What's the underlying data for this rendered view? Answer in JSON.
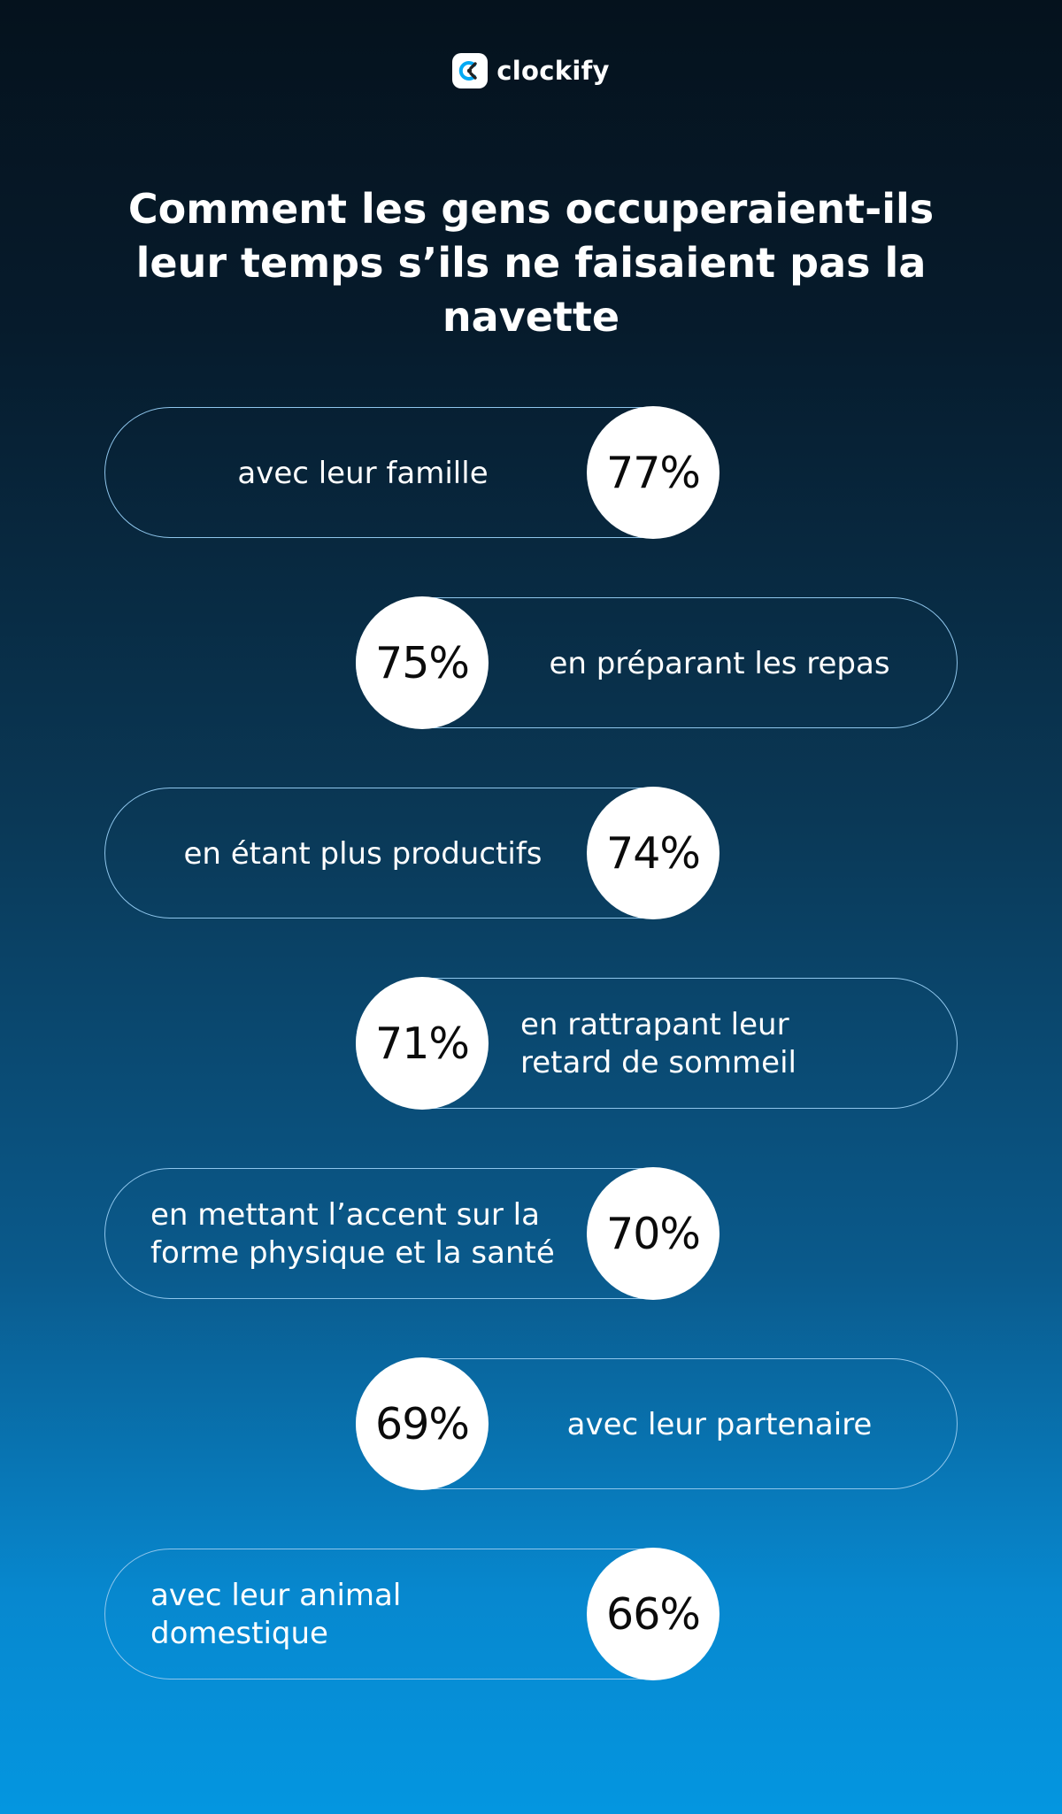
{
  "brand": {
    "name": "clockify",
    "icon": "clockify-logo-icon"
  },
  "chart_data": {
    "type": "bar",
    "title": "Comment les gens occuperaient-ils leur temps s’ils ne faisaient pas la navette",
    "categories": [
      "avec leur famille",
      "en préparant les repas",
      "en étant plus productifs",
      "en rattrapant leur retard de sommeil",
      "en mettant l’accent sur la forme physique et la santé",
      "avec leur partenaire",
      "avec leur animal domestique"
    ],
    "values": [
      77,
      75,
      74,
      71,
      70,
      69,
      66
    ],
    "value_labels": [
      "77%",
      "75%",
      "74%",
      "71%",
      "70%",
      "69%",
      "66%"
    ],
    "display_lines": [
      [
        "avec leur famille"
      ],
      [
        "en préparant les repas"
      ],
      [
        "en étant plus productifs"
      ],
      [
        "en rattrapant leur",
        "retard de sommeil"
      ],
      [
        "en mettant l’accent sur la",
        "forme physique et la santé"
      ],
      [
        "avec leur partenaire"
      ],
      [
        "avec leur animal",
        "domestique"
      ]
    ],
    "xlabel": "",
    "ylabel": "",
    "colors": {
      "pill_border": "#8fc6ec",
      "circle_fill": "#ffffff",
      "value_text": "#0b0b0b",
      "label_text": "#ffffff"
    }
  }
}
